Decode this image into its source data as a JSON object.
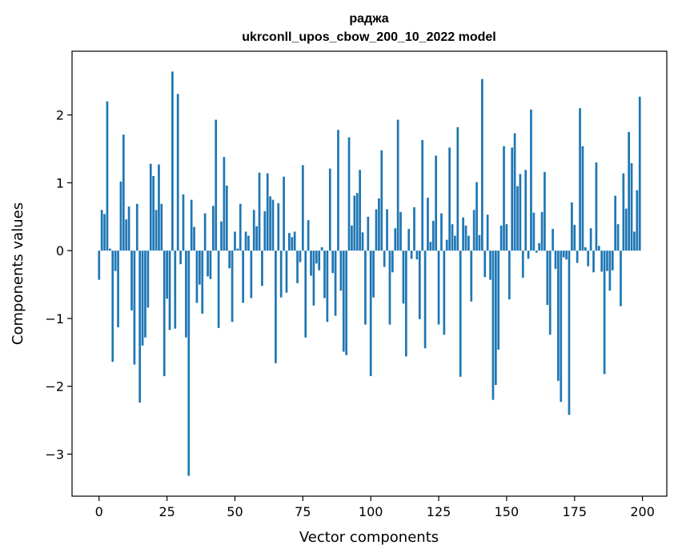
{
  "chart_data": {
    "type": "bar",
    "title": "раджа",
    "subtitle": "ukrconll_upos_cbow_200_10_2022 model",
    "xlabel": "Vector components",
    "ylabel": "Components values",
    "xlim": [
      -9.95,
      208.95
    ],
    "ylim": [
      -3.62,
      2.94
    ],
    "xticks": [
      0,
      25,
      50,
      75,
      100,
      125,
      150,
      175,
      200
    ],
    "yticks": [
      -3,
      -2,
      -1,
      0,
      1,
      2
    ],
    "ytick_labels": [
      "−3",
      "−2",
      "−1",
      "0",
      "1",
      "2"
    ],
    "grid": false,
    "bar_color": "#1f77b4",
    "values": [
      -0.43,
      0.6,
      0.54,
      2.2,
      0.03,
      -1.64,
      -0.3,
      -1.13,
      1.02,
      1.71,
      0.46,
      0.65,
      -0.88,
      -1.68,
      0.69,
      -2.24,
      -1.4,
      -1.28,
      -0.84,
      1.28,
      1.1,
      0.6,
      1.27,
      0.69,
      -1.85,
      -0.71,
      -1.17,
      2.64,
      -1.15,
      2.31,
      -0.2,
      0.83,
      -1.28,
      -3.32,
      0.75,
      0.35,
      -0.77,
      -0.5,
      -0.93,
      0.55,
      -0.38,
      -0.42,
      0.66,
      1.93,
      -1.14,
      0.43,
      1.38,
      0.96,
      -0.26,
      -1.05,
      0.28,
      0.03,
      0.69,
      -0.77,
      0.28,
      0.22,
      -0.7,
      0.6,
      0.36,
      1.15,
      -0.52,
      0.58,
      1.14,
      0.8,
      0.75,
      -1.66,
      0.7,
      -0.69,
      1.09,
      -0.62,
      0.26,
      0.2,
      0.28,
      -0.48,
      -0.17,
      1.26,
      -1.28,
      0.45,
      -0.37,
      -0.81,
      -0.19,
      -0.29,
      0.05,
      -0.7,
      -1.05,
      1.21,
      -0.33,
      -0.96,
      1.78,
      -0.59,
      -1.49,
      -1.54,
      1.67,
      0.37,
      0.81,
      0.85,
      1.19,
      0.27,
      -1.09,
      0.5,
      -1.85,
      -0.69,
      0.61,
      0.77,
      1.48,
      -0.24,
      0.61,
      -1.09,
      -0.32,
      0.33,
      1.93,
      0.57,
      -0.78,
      -1.56,
      0.32,
      -0.12,
      0.64,
      -0.13,
      -1.01,
      1.63,
      -1.44,
      0.78,
      0.13,
      0.44,
      1.4,
      -1.09,
      0.55,
      -1.24,
      0.16,
      1.52,
      0.39,
      0.22,
      1.82,
      -1.86,
      0.49,
      0.37,
      0.22,
      -0.75,
      0.6,
      1.01,
      0.23,
      2.53,
      -0.39,
      0.53,
      -0.43,
      -2.2,
      -1.98,
      -1.46,
      0.37,
      1.54,
      0.39,
      -0.72,
      1.52,
      1.73,
      0.95,
      1.13,
      -0.4,
      1.19,
      -0.12,
      2.08,
      0.56,
      -0.03,
      0.11,
      0.57,
      1.16,
      -0.8,
      -1.24,
      0.32,
      -0.27,
      -1.92,
      -2.23,
      -0.1,
      -0.13,
      -2.42,
      0.71,
      0.38,
      -0.18,
      2.1,
      1.54,
      0.05,
      -0.23,
      0.33,
      -0.32,
      1.3,
      0.07,
      -0.31,
      -1.82,
      -0.3,
      -0.59,
      -0.29,
      0.81,
      0.39,
      -0.82,
      1.14,
      0.62,
      1.75,
      1.29,
      0.28,
      0.89,
      2.27
    ]
  }
}
